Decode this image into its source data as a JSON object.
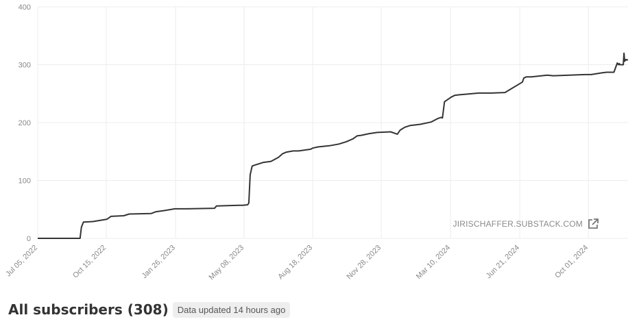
{
  "chart_data": {
    "type": "line",
    "title": "All subscribers (308)",
    "xlabel": "",
    "ylabel": "",
    "ylim": [
      0,
      400
    ],
    "y_ticks": [
      "0",
      "100",
      "200",
      "300",
      "400"
    ],
    "x_tick_labels": [
      "Jul 05, 2022",
      "Oct 15, 2022",
      "Jan 26, 2023",
      "May 08, 2023",
      "Aug 18, 2023",
      "Nov 28, 2023",
      "Mar 10, 2024",
      "Jun 21, 2024",
      "Oct 01, 2024"
    ],
    "grid": true,
    "series": [
      {
        "x": [
          "2022-07-05",
          "2022-09-06",
          "2022-09-08",
          "2022-09-11",
          "2022-09-25",
          "2022-10-16",
          "2022-10-22",
          "2022-11-10",
          "2022-11-18",
          "2022-12-21",
          "2022-12-28",
          "2023-01-10",
          "2023-01-25",
          "2023-02-12",
          "2023-03-25",
          "2023-03-28",
          "2023-04-30",
          "2023-05-06",
          "2023-05-13",
          "2023-05-14",
          "2023-05-15",
          "2023-05-17",
          "2023-05-20",
          "2023-05-25",
          "2023-06-05",
          "2023-06-17",
          "2023-06-28",
          "2023-07-04",
          "2023-07-10",
          "2023-07-20",
          "2023-07-28",
          "2023-08-15",
          "2023-08-18",
          "2023-08-26",
          "2023-09-12",
          "2023-09-26",
          "2023-10-07",
          "2023-10-17",
          "2023-10-23",
          "2023-10-29",
          "2023-11-10",
          "2023-11-22",
          "2023-12-12",
          "2023-12-22",
          "2023-12-26",
          "2024-01-02",
          "2024-01-10",
          "2024-01-25",
          "2024-02-10",
          "2024-02-20",
          "2024-02-25",
          "2024-02-27",
          "2024-03-01",
          "2024-03-06",
          "2024-03-11",
          "2024-03-16",
          "2024-03-23",
          "2024-04-01",
          "2024-04-11",
          "2024-04-21",
          "2024-05-10",
          "2024-05-30",
          "2024-06-25",
          "2024-06-27",
          "2024-07-01",
          "2024-07-08",
          "2024-08-01",
          "2024-08-10",
          "2024-09-26",
          "2024-10-05",
          "2024-10-22",
          "2024-10-28",
          "2024-11-08",
          "2024-11-13",
          "2024-11-15",
          "2024-11-16",
          "2024-11-17",
          "2024-11-22",
          "2024-11-23",
          "2024-11-24",
          "2024-11-26",
          "2024-11-29"
        ],
        "y": [
          0,
          0,
          19,
          28,
          29,
          33,
          38,
          39,
          42,
          43,
          46,
          48,
          51,
          51,
          52,
          56,
          57,
          57,
          58,
          59,
          61,
          110,
          125,
          127,
          131,
          133,
          140,
          146,
          149,
          151,
          151,
          154,
          156,
          158,
          160,
          163,
          167,
          172,
          177,
          178,
          181,
          183,
          184,
          180,
          187,
          192,
          195,
          197,
          201,
          207,
          209,
          208,
          236,
          240,
          244,
          247,
          248,
          249,
          250,
          251,
          251,
          252,
          270,
          277,
          279,
          279,
          282,
          281,
          283,
          283,
          286,
          287,
          287,
          303,
          300,
          302,
          300,
          300,
          320,
          306,
          309,
          308
        ]
      }
    ]
  },
  "source_label": "JIRISCHAFFER.SUBSTACK.COM",
  "source_icon": "external-link-icon",
  "footer": {
    "title": "All subscribers (308)",
    "badge": "Data updated 14 hours ago"
  },
  "colors": {
    "line": "#333333",
    "grid": "#ececec",
    "axis_text": "#888888"
  }
}
